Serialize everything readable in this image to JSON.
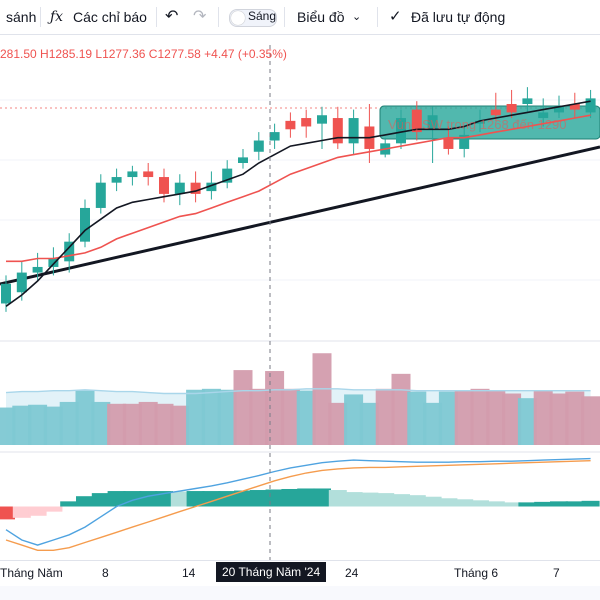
{
  "toolbar": {
    "compare_label": "sánh",
    "indicators_label": "Các chỉ báo",
    "theme_label": "Sáng",
    "chart_label": "Biểu đồ",
    "saved_label": "Đã lưu tự động"
  },
  "legend": {
    "text": "281.50 H1285.19 L1277.36 C1277.58 +4.47 (+0.35%)"
  },
  "annotation_text": "Vùng SW trong 1268 đến 1290",
  "x_axis": {
    "labels": [
      "Tháng Năm",
      "8",
      "14",
      "24",
      "Tháng 6",
      "7"
    ],
    "active_label": "20 Tháng Năm '24"
  },
  "colors": {
    "up": "#26a69a",
    "down": "#ef5350",
    "vol_up": "#7ec8d3",
    "vol_down": "#d39cad",
    "ma_fast": "#131722",
    "ma_slow": "#ef5350",
    "trend": "#131722",
    "macd": "#4fa3e0",
    "signal": "#f59c4e",
    "zone": "#26a69a"
  },
  "chart_data": {
    "type": "candlestick",
    "title": "",
    "ylim": [
      1200,
      1305
    ],
    "candles": [
      {
        "o": 1213,
        "c": 1220,
        "h": 1223,
        "l": 1210
      },
      {
        "o": 1217,
        "c": 1224,
        "h": 1228,
        "l": 1214
      },
      {
        "o": 1224,
        "c": 1226,
        "h": 1231,
        "l": 1221
      },
      {
        "o": 1226,
        "c": 1229,
        "h": 1233,
        "l": 1223
      },
      {
        "o": 1228,
        "c": 1235,
        "h": 1238,
        "l": 1224
      },
      {
        "o": 1235,
        "c": 1247,
        "h": 1250,
        "l": 1233
      },
      {
        "o": 1247,
        "c": 1256,
        "h": 1259,
        "l": 1245
      },
      {
        "o": 1256,
        "c": 1258,
        "h": 1261,
        "l": 1253
      },
      {
        "o": 1258,
        "c": 1260,
        "h": 1262,
        "l": 1255
      },
      {
        "o": 1260,
        "c": 1258,
        "h": 1263,
        "l": 1255
      },
      {
        "o": 1258,
        "c": 1252,
        "h": 1261,
        "l": 1249
      },
      {
        "o": 1252,
        "c": 1256,
        "h": 1259,
        "l": 1248
      },
      {
        "o": 1256,
        "c": 1252,
        "h": 1260,
        "l": 1249
      },
      {
        "o": 1253,
        "c": 1256,
        "h": 1260,
        "l": 1250
      },
      {
        "o": 1256,
        "c": 1261,
        "h": 1264,
        "l": 1254
      },
      {
        "o": 1263,
        "c": 1265,
        "h": 1268,
        "l": 1261
      },
      {
        "o": 1267,
        "c": 1271,
        "h": 1274,
        "l": 1264
      },
      {
        "o": 1271,
        "c": 1274,
        "h": 1277,
        "l": 1268
      },
      {
        "o": 1278,
        "c": 1275,
        "h": 1281,
        "l": 1272
      },
      {
        "o": 1279,
        "c": 1276,
        "h": 1282,
        "l": 1272
      },
      {
        "o": 1277,
        "c": 1280,
        "h": 1283,
        "l": 1268
      },
      {
        "o": 1279,
        "c": 1270,
        "h": 1283,
        "l": 1268
      },
      {
        "o": 1270,
        "c": 1279,
        "h": 1282,
        "l": 1266
      },
      {
        "o": 1276,
        "c": 1268,
        "h": 1284,
        "l": 1263
      },
      {
        "o": 1266,
        "c": 1270,
        "h": 1272,
        "l": 1265
      },
      {
        "o": 1270,
        "c": 1279,
        "h": 1282,
        "l": 1268
      },
      {
        "o": 1282,
        "c": 1274,
        "h": 1285,
        "l": 1271
      },
      {
        "o": 1275,
        "c": 1280,
        "h": 1283,
        "l": 1263
      },
      {
        "o": 1272,
        "c": 1268,
        "h": 1276,
        "l": 1266
      },
      {
        "o": 1268,
        "c": 1273,
        "h": 1276,
        "l": 1265
      },
      {
        "o": 1277,
        "c": 1278,
        "h": 1282,
        "l": 1274
      },
      {
        "o": 1282,
        "c": 1280,
        "h": 1288,
        "l": 1278
      },
      {
        "o": 1284,
        "c": 1281,
        "h": 1289,
        "l": 1279
      },
      {
        "o": 1284,
        "c": 1286,
        "h": 1290,
        "l": 1281
      },
      {
        "o": 1279,
        "c": 1281,
        "h": 1286,
        "l": 1276
      },
      {
        "o": 1281,
        "c": 1283,
        "h": 1287,
        "l": 1279
      },
      {
        "o": 1284,
        "c": 1282,
        "h": 1288,
        "l": 1279
      },
      {
        "o": 1281,
        "c": 1286,
        "h": 1289,
        "l": 1279
      }
    ],
    "ma_fast": [
      1212,
      1216,
      1221,
      1227,
      1233,
      1239,
      1243,
      1247,
      1249,
      1250,
      1251,
      1252,
      1253,
      1255,
      1257,
      1259,
      1263,
      1266,
      1269,
      1270,
      1271,
      1272,
      1272,
      1272,
      1273,
      1274,
      1275,
      1275,
      1275,
      1276,
      1278,
      1279,
      1280,
      1281,
      1282,
      1283,
      1284,
      1285
    ],
    "ma_slow": [
      1228,
      1228,
      1229,
      1229,
      1230,
      1231,
      1233,
      1236,
      1238,
      1240,
      1242,
      1244,
      1245,
      1247,
      1249,
      1251,
      1253,
      1256,
      1259,
      1261,
      1263,
      1265,
      1266,
      1267,
      1268,
      1269,
      1270,
      1271,
      1272,
      1272,
      1273,
      1274,
      1275,
      1276,
      1277,
      1278,
      1279,
      1280
    ],
    "volume": {
      "ylim": [
        0,
        110
      ],
      "bars": [
        {
          "v": 40,
          "up": true
        },
        {
          "v": 42,
          "up": true
        },
        {
          "v": 43,
          "up": true
        },
        {
          "v": 41,
          "up": true
        },
        {
          "v": 46,
          "up": true
        },
        {
          "v": 58,
          "up": true
        },
        {
          "v": 46,
          "up": true
        },
        {
          "v": 44,
          "up": false
        },
        {
          "v": 44,
          "up": false
        },
        {
          "v": 46,
          "up": false
        },
        {
          "v": 44,
          "up": false
        },
        {
          "v": 42,
          "up": false
        },
        {
          "v": 59,
          "up": true
        },
        {
          "v": 60,
          "up": true
        },
        {
          "v": 59,
          "up": true
        },
        {
          "v": 80,
          "up": false
        },
        {
          "v": 60,
          "up": false
        },
        {
          "v": 79,
          "up": false
        },
        {
          "v": 60,
          "up": false
        },
        {
          "v": 58,
          "up": true
        },
        {
          "v": 98,
          "up": false
        },
        {
          "v": 45,
          "up": false
        },
        {
          "v": 54,
          "up": true
        },
        {
          "v": 45,
          "up": true
        },
        {
          "v": 60,
          "up": false
        },
        {
          "v": 76,
          "up": false
        },
        {
          "v": 57,
          "up": true
        },
        {
          "v": 45,
          "up": true
        },
        {
          "v": 57,
          "up": true
        },
        {
          "v": 58,
          "up": false
        },
        {
          "v": 60,
          "up": false
        },
        {
          "v": 58,
          "up": false
        },
        {
          "v": 55,
          "up": false
        },
        {
          "v": 50,
          "up": true
        },
        {
          "v": 58,
          "up": false
        },
        {
          "v": 55,
          "up": false
        },
        {
          "v": 57,
          "up": false
        },
        {
          "v": 52,
          "up": false
        }
      ],
      "ma": [
        56,
        57,
        57,
        58,
        58,
        59,
        58,
        57,
        57,
        56,
        55,
        55,
        55,
        56,
        57,
        58,
        58,
        59,
        59,
        60,
        60,
        60,
        59,
        59,
        59,
        59,
        58,
        58,
        58,
        58,
        58,
        58,
        58,
        58,
        58,
        58,
        58,
        58
      ]
    },
    "macd": {
      "ylim": [
        -10,
        10
      ],
      "histogram": [
        -2.5,
        -2.2,
        -1.8,
        -1.0,
        1.0,
        2.0,
        2.6,
        3.0,
        3.0,
        3.0,
        3.0,
        2.9,
        3.0,
        3.0,
        3.0,
        3.1,
        3.2,
        3.3,
        3.4,
        3.5,
        3.5,
        3.2,
        2.8,
        2.7,
        2.6,
        2.4,
        2.2,
        1.9,
        1.6,
        1.4,
        1.2,
        1.0,
        0.8,
        0.8,
        0.9,
        1.0,
        1.0,
        1.1
      ],
      "macd_line": [
        -4.5,
        -6.5,
        -7.5,
        -6.5,
        -5.5,
        -4.0,
        -2.0,
        0.0,
        1.2,
        2.0,
        2.5,
        3.0,
        3.5,
        4.0,
        4.6,
        5.3,
        6.0,
        6.8,
        7.5,
        8.0,
        8.5,
        8.8,
        9.0,
        8.9,
        8.8,
        8.7,
        8.6,
        8.6,
        8.6,
        8.7,
        8.7,
        8.8,
        8.8,
        8.9,
        9.0,
        9.1,
        9.2,
        9.3
      ],
      "signal_line": [
        -6.5,
        -7.5,
        -8.5,
        -8.5,
        -8.0,
        -7.0,
        -6.0,
        -5.0,
        -4.0,
        -3.0,
        -2.0,
        -1.0,
        0.0,
        1.0,
        2.0,
        3.0,
        4.0,
        5.0,
        5.8,
        6.5,
        7.0,
        7.3,
        7.5,
        7.6,
        7.6,
        7.7,
        7.8,
        7.9,
        8.0,
        8.1,
        8.2,
        8.3,
        8.4,
        8.5,
        8.6,
        8.7,
        8.8,
        8.9
      ]
    }
  }
}
